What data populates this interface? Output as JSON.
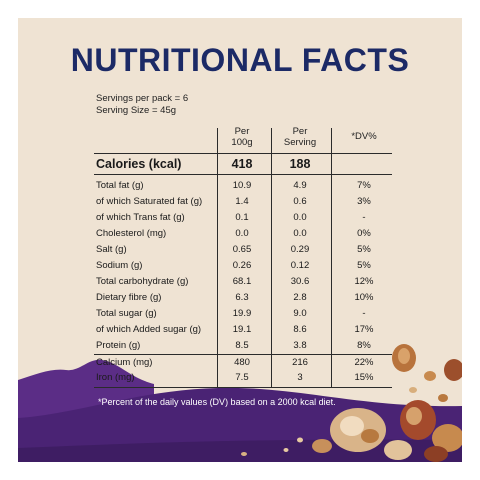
{
  "title": "NUTRITIONAL FACTS",
  "servings_per_pack": "Servings per pack = 6",
  "serving_size": "Serving Size = 45g",
  "columns": {
    "per100_line1": "Per",
    "per100_line2": "100g",
    "perserving_line1": "Per",
    "perserving_line2": "Serving",
    "dv": "*DV%"
  },
  "calories": {
    "label": "Calories (kcal)",
    "per100": "418",
    "perserving": "188",
    "dv": ""
  },
  "rows": [
    {
      "label": "Total fat (g)",
      "per100": "10.9",
      "perserving": "4.9",
      "dv": "7%"
    },
    {
      "label": "of which Saturated fat (g)",
      "per100": "1.4",
      "perserving": "0.6",
      "dv": "3%"
    },
    {
      "label": "of which Trans fat (g)",
      "per100": "0.1",
      "perserving": "0.0",
      "dv": "-"
    },
    {
      "label": "Cholesterol (mg)",
      "per100": "0.0",
      "perserving": "0.0",
      "dv": "0%"
    },
    {
      "label": "Salt (g)",
      "per100": "0.65",
      "perserving": "0.29",
      "dv": "5%"
    },
    {
      "label": "Sodium (g)",
      "per100": "0.26",
      "perserving": "0.12",
      "dv": "5%"
    },
    {
      "label": "Total carbohydrate (g)",
      "per100": "68.1",
      "perserving": "30.6",
      "dv": "12%"
    },
    {
      "label": "Dietary fibre (g)",
      "per100": "6.3",
      "perserving": "2.8",
      "dv": "10%"
    },
    {
      "label": "Total sugar (g)",
      "per100": "19.9",
      "perserving": "9.0",
      "dv": "-"
    },
    {
      "label": "of which Added sugar (g)",
      "per100": "19.1",
      "perserving": "8.6",
      "dv": "17%"
    },
    {
      "label": "Protein (g)",
      "per100": "8.5",
      "perserving": "3.8",
      "dv": "8%"
    }
  ],
  "minerals": [
    {
      "label": "Calcium (mg)",
      "per100": "480",
      "perserving": "216",
      "dv": "22%"
    },
    {
      "label": "Iron (mg)",
      "per100": "7.5",
      "perserving": "3",
      "dv": "15%"
    }
  ],
  "footnote": "*Percent of the daily values (DV) based on a 2000 kcal diet.",
  "colors": {
    "background": "#efe3d3",
    "title": "#1c2a66",
    "purple": "#5b2d86",
    "purple_dark": "#3e1d63"
  }
}
